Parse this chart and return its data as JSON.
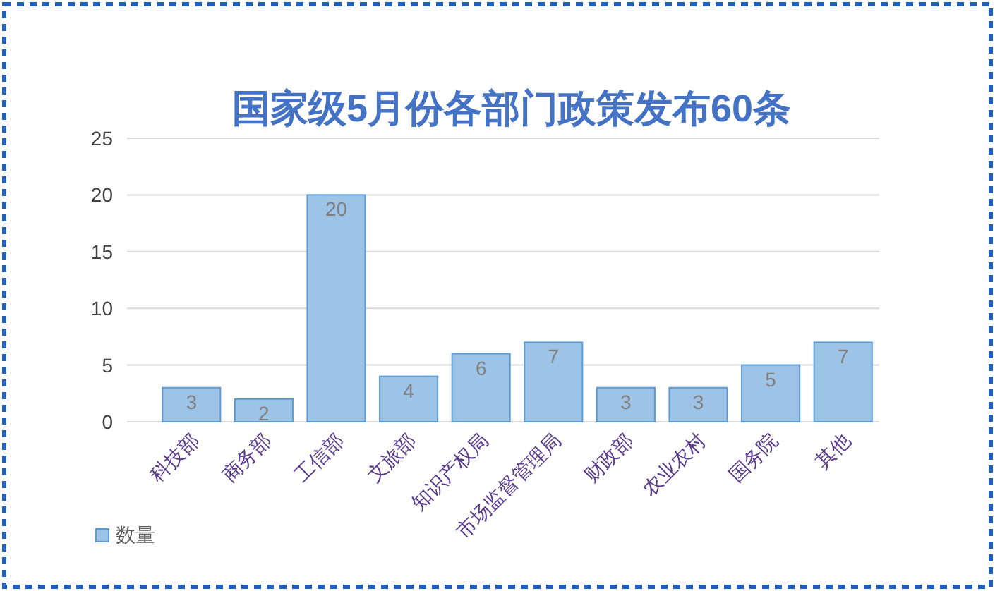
{
  "chart_data": {
    "type": "bar",
    "title": "国家级5月份各部门政策发布60条",
    "categories": [
      "科技部",
      "商务部",
      "工信部",
      "文旅部",
      "知识产权局",
      "市场监督管理局",
      "财政部",
      "农业农村",
      "国务院",
      "其他"
    ],
    "series": [
      {
        "name": "数量",
        "color": "#9dc3e6",
        "values": [
          3,
          2,
          20,
          4,
          6,
          7,
          3,
          3,
          5,
          7
        ]
      }
    ],
    "ylim": [
      0,
      25
    ],
    "yticks": [
      0,
      5,
      10,
      15,
      20,
      25
    ],
    "grid": "y",
    "legend": "bottom left",
    "data_labels": true
  }
}
